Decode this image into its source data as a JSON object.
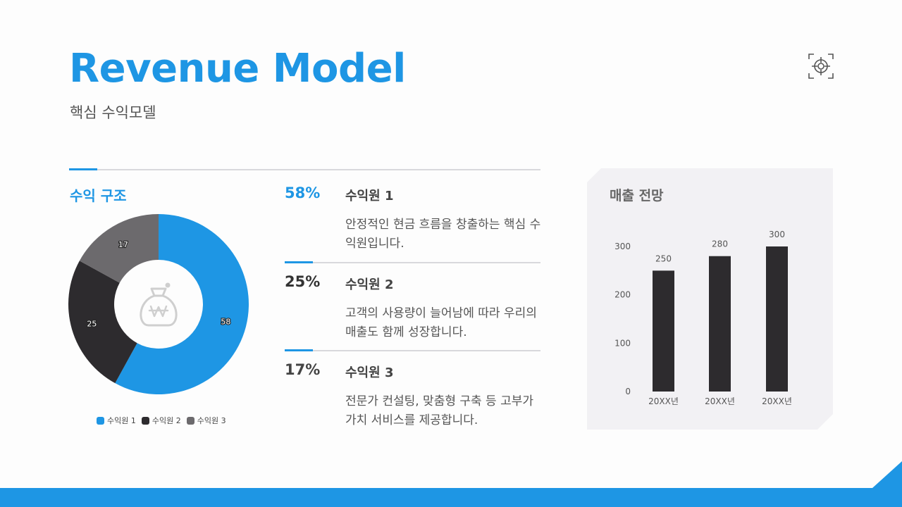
{
  "header": {
    "title": "Revenue Model",
    "subtitle": "핵심 수익모델",
    "icon": "target-crosshair-icon"
  },
  "revenue_structure": {
    "title": "수익 구조",
    "center_icon": "money-bag-won-icon",
    "segments": [
      {
        "label": "수익원 1",
        "value": 58,
        "color": "#1e96e4"
      },
      {
        "label": "수익원 2",
        "value": 25,
        "color": "#2d2b2e"
      },
      {
        "label": "수익원 3",
        "value": 17,
        "color": "#6c6a6d"
      }
    ],
    "legend": [
      "수익원 1",
      "수익원 2",
      "수익원 3"
    ]
  },
  "sources": [
    {
      "pct": "58%",
      "pct_color": "#1e96e4",
      "name": "수익원 1",
      "desc": "안정적인 현금 흐름을 창출하는 핵심 수익원입니다."
    },
    {
      "pct": "25%",
      "pct_color": "#333333",
      "name": "수익원 2",
      "desc": "고객의 사용량이 늘어남에 따라 우리의 매출도 함께 성장합니다."
    },
    {
      "pct": "17%",
      "pct_color": "#444444",
      "name": "수익원 3",
      "desc": "전문가 컨설팅, 맞춤형 구축 등 고부가가치 서비스를 제공합니다."
    }
  ],
  "forecast": {
    "title": "매출 전망",
    "bar_color": "#2d2b2e",
    "panel_color": "#f2f1f4"
  },
  "chart_data": [
    {
      "type": "pie",
      "title": "수익 구조",
      "categories": [
        "수익원 1",
        "수익원 2",
        "수익원 3"
      ],
      "values": [
        58,
        25,
        17
      ],
      "colors": [
        "#1e96e4",
        "#2d2b2e",
        "#6c6a6d"
      ],
      "donut": true,
      "data_labels": [
        "58",
        "25",
        "17"
      ],
      "legend_position": "bottom"
    },
    {
      "type": "bar",
      "title": "매출 전망",
      "categories": [
        "20XX년",
        "20XX년",
        "20XX년"
      ],
      "values": [
        250,
        280,
        300
      ],
      "data_labels": [
        "250",
        "280",
        "300"
      ],
      "yticks": [
        0,
        100,
        200,
        300
      ],
      "ylim": [
        0,
        300
      ],
      "xlabel": "",
      "ylabel": "",
      "grid": false,
      "color": "#2d2b2e"
    }
  ],
  "theme": {
    "accent": "#1e96e4",
    "dark": "#2d2b2e",
    "gray": "#6c6a6d"
  }
}
